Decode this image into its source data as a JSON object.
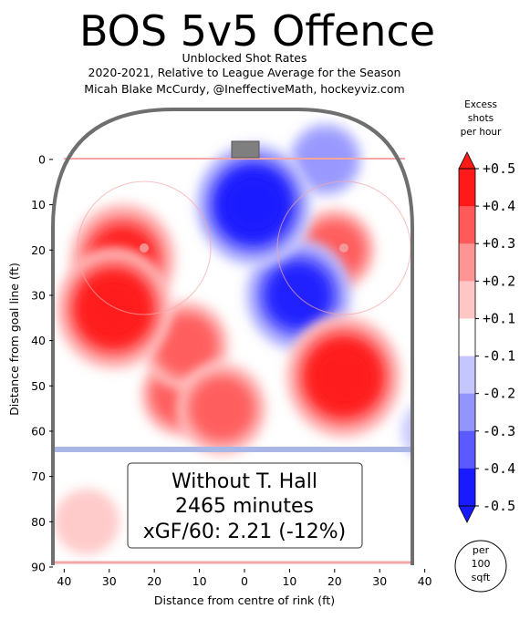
{
  "header": {
    "title": "BOS 5v5 Offence",
    "subtitle_lines": [
      "Unblocked Shot Rates",
      "2020-2021, Relative to League Average for the Season",
      "Micah Blake McCurdy, @IneffectiveMath, hockeyviz.com"
    ]
  },
  "info_box": {
    "lines": [
      "Without T. Hall",
      "2465 minutes",
      "xGF/60: 2.21 (-12%)"
    ]
  },
  "colorbar": {
    "title_lines": [
      "Excess",
      "shots",
      "per hour"
    ],
    "tick_labels": [
      "+0.5",
      "+0.4",
      "+0.3",
      "+0.2",
      "+0.1",
      "-0.1",
      "-0.2",
      "-0.3",
      "-0.4",
      "-0.5"
    ],
    "unit_lines": [
      "per",
      "100",
      "sqft"
    ],
    "colors": [
      "#ff1a1a",
      "#ff5a5a",
      "#ff9494",
      "#ffc6c6",
      "#ffffff",
      "#c6c6ff",
      "#9494ff",
      "#5a5aff",
      "#1a1aff"
    ]
  },
  "chart_data": {
    "type": "heatmap",
    "xlabel": "Distance from centre of rink (ft)",
    "ylabel": "Distance from goal line (ft)",
    "xlim": [
      -42.5,
      42.5
    ],
    "ylim": [
      90,
      -3
    ],
    "x_ticks": [
      -40,
      -30,
      -20,
      -10,
      0,
      10,
      20,
      30,
      40
    ],
    "x_tick_labels": [
      "40",
      "30",
      "20",
      "10",
      "0",
      "10",
      "20",
      "30",
      "40"
    ],
    "y_ticks": [
      0,
      10,
      20,
      30,
      40,
      50,
      60,
      70,
      80,
      90
    ],
    "y_tick_labels": [
      "0",
      "10",
      "20",
      "30",
      "40",
      "50",
      "60",
      "70",
      "80",
      "90"
    ],
    "colorscale_range": [
      -0.5,
      0.5
    ],
    "hotspots": [
      {
        "x": 22,
        "y": 48,
        "value": 0.5
      },
      {
        "x": 20,
        "y": 20,
        "value": 0.25
      },
      {
        "x": -29,
        "y": 33,
        "value": 0.45
      },
      {
        "x": -27,
        "y": 22,
        "value": 0.4
      },
      {
        "x": -14,
        "y": 52,
        "value": 0.25
      },
      {
        "x": -13,
        "y": 41,
        "value": 0.28
      },
      {
        "x": -5,
        "y": 55,
        "value": 0.3
      },
      {
        "x": 2,
        "y": 10,
        "value": -0.5
      },
      {
        "x": 12,
        "y": 30,
        "value": -0.4
      },
      {
        "x": 18,
        "y": 0,
        "value": -0.2
      },
      {
        "x": -35,
        "y": 80,
        "value": 0.15
      },
      {
        "x": 42,
        "y": 60,
        "value": -0.15
      }
    ]
  }
}
